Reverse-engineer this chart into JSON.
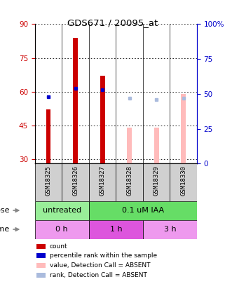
{
  "title": "GDS671 / 20095_at",
  "samples": [
    "GSM18325",
    "GSM18326",
    "GSM18327",
    "GSM18328",
    "GSM18329",
    "GSM18330"
  ],
  "red_bars": [
    52,
    84,
    67,
    null,
    null,
    null
  ],
  "blue_dots_right": [
    48,
    54,
    53,
    null,
    null,
    null
  ],
  "pink_bars": [
    null,
    null,
    null,
    44,
    44,
    59
  ],
  "lavender_dots_right": [
    null,
    null,
    null,
    47,
    46,
    47
  ],
  "ylim_left": [
    28,
    90
  ],
  "ylim_right": [
    0,
    100
  ],
  "yticks_left": [
    30,
    45,
    60,
    75,
    90
  ],
  "yticks_right": [
    0,
    25,
    50,
    75,
    100
  ],
  "left_axis_color": "#cc0000",
  "right_axis_color": "#0000cc",
  "dose_labels": [
    {
      "text": "untreated",
      "start": 0,
      "end": 2,
      "color": "#99ee99"
    },
    {
      "text": "0.1 uM IAA",
      "start": 2,
      "end": 6,
      "color": "#66dd66"
    }
  ],
  "time_labels": [
    {
      "text": "0 h",
      "start": 0,
      "end": 2,
      "color": "#ee99ee"
    },
    {
      "text": "1 h",
      "start": 2,
      "end": 4,
      "color": "#dd55dd"
    },
    {
      "text": "3 h",
      "start": 4,
      "end": 6,
      "color": "#ee99ee"
    }
  ],
  "legend_colors": [
    "#cc0000",
    "#0000cc",
    "#ffbbbb",
    "#aabbdd"
  ],
  "legend_labels": [
    "count",
    "percentile rank within the sample",
    "value, Detection Call = ABSENT",
    "rank, Detection Call = ABSENT"
  ],
  "bar_width": 0.18
}
